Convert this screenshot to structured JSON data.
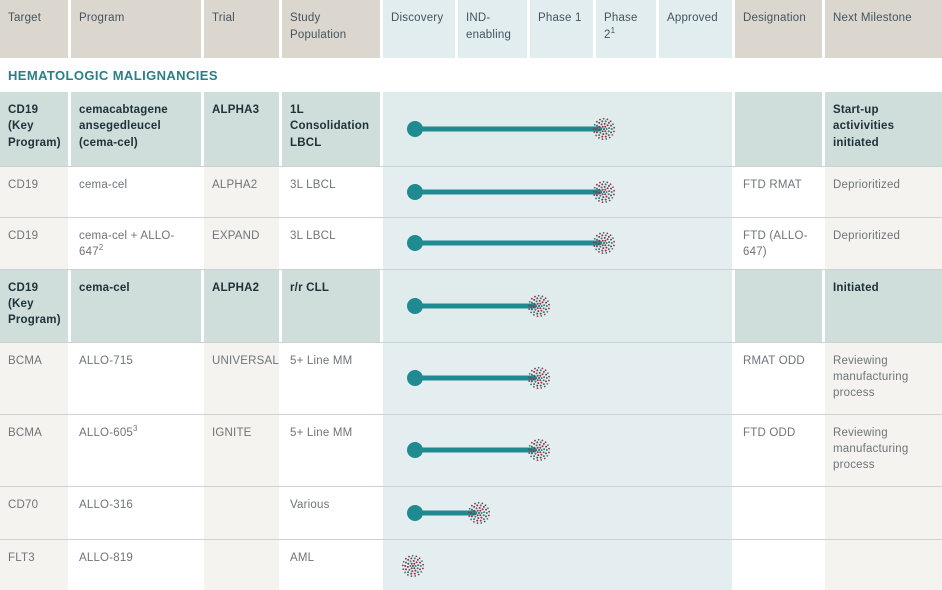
{
  "section_title": "HEMATOLOGIC MALIGNANCIES",
  "columns": {
    "target": "Target",
    "program": "Program",
    "trial": "Trial",
    "population": "Study Population",
    "designation": "Designation",
    "milestone": "Next Milestone"
  },
  "phases": [
    {
      "label": "Discovery"
    },
    {
      "label": "IND-enabling"
    },
    {
      "label": "Phase 1"
    },
    {
      "label": "Phase 2",
      "sup": "1"
    },
    {
      "label": "Approved"
    }
  ],
  "stage_marker_positions_pct": {
    "discovery": 8.5,
    "ind_enabling": 27.6,
    "phase1": 44.7,
    "phase2": 63.4
  },
  "bar_start_pct": 9.1,
  "icons": {
    "progress_start": "filled-circle",
    "milestone_marker": "dot-cluster-starburst"
  },
  "colors": {
    "bar_teal": "#1f8b91",
    "section_teal": "#2a7e86",
    "header_beige": "#dbd7cf",
    "header_blue": "#e2edf0",
    "key_row_sage": "#cfdeda",
    "phase_band_blue": "#e4eef0",
    "marker_maroon": "#8e3548",
    "marker_teal": "#2f7e78"
  },
  "rows": [
    {
      "target": "CD19 (Key Program)",
      "program": "cemacabtagene ansegedleucel (cema-cel)",
      "trial": "ALPHA3",
      "population": "1L Consolidation LBCL",
      "stage": "phase2",
      "has_line": true,
      "designation": "",
      "milestone": "Start-up activivities initiated",
      "key_program": true
    },
    {
      "target": "CD19",
      "program": "cema-cel",
      "trial": "ALPHA2",
      "population": "3L LBCL",
      "stage": "phase2",
      "has_line": true,
      "designation": "FTD RMAT",
      "milestone": "Deprioritized",
      "key_program": false
    },
    {
      "target": "CD19",
      "program": "cema-cel + ALLO-647",
      "program_sup": "2",
      "trial": "EXPAND",
      "population": "3L LBCL",
      "stage": "phase2",
      "has_line": true,
      "designation": "FTD (ALLO-647)",
      "milestone": "Deprioritized",
      "key_program": false
    },
    {
      "target": "CD19 (Key Program)",
      "program": "cema-cel",
      "trial": "ALPHA2",
      "population": "r/r CLL",
      "stage": "phase1",
      "has_line": true,
      "designation": "",
      "milestone": "Initiated",
      "key_program": true
    },
    {
      "target": "BCMA",
      "program": "ALLO-715",
      "trial": "UNIVERSAL",
      "population": "5+ Line MM",
      "stage": "phase1",
      "has_line": true,
      "designation": "RMAT ODD",
      "milestone": "Reviewing manufacturing process",
      "key_program": false
    },
    {
      "target": "BCMA",
      "program": "ALLO-605",
      "program_sup": "3",
      "trial": "IGNITE",
      "population": "5+ Line MM",
      "stage": "phase1",
      "has_line": true,
      "designation": "FTD ODD",
      "milestone": "Reviewing manufacturing process",
      "key_program": false
    },
    {
      "target": "CD70",
      "program": "ALLO-316",
      "trial": "",
      "population": "Various",
      "stage": "ind_enabling",
      "has_line": true,
      "designation": "",
      "milestone": "",
      "key_program": false
    },
    {
      "target": "FLT3",
      "program": "ALLO-819",
      "trial": "",
      "population": "AML",
      "stage": "discovery",
      "has_line": false,
      "designation": "",
      "milestone": "",
      "key_program": false
    }
  ]
}
